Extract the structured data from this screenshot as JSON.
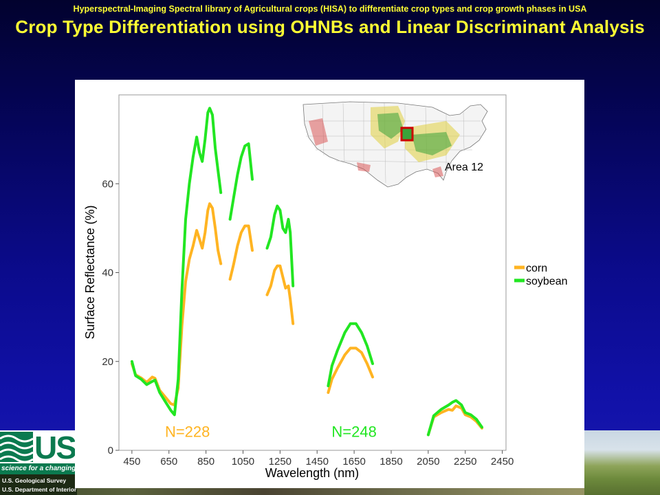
{
  "slide": {
    "subtitle": "Hyperspectral-Imaging Spectral library of Agricultural crops (HISA) to differentiate crop types and crop growth phases in USA",
    "title": "Crop Type Differentiation using OHNBs and Linear Discriminant Analysis"
  },
  "footer": {
    "logo_text": "US",
    "slogan": "science for a changing world",
    "line1": "U.S. Geological Survey",
    "line2": "U.S. Department of Interior"
  },
  "colors": {
    "corn": "#ffb422",
    "soybean": "#22e622",
    "title": "#ffff33"
  },
  "inset_map": {
    "label": "Area 12"
  },
  "chart_data": {
    "type": "line",
    "title": "",
    "xlabel": "Wavelength (nm)",
    "ylabel": "Surface Reflectance (%)",
    "xlim": [
      380,
      2470
    ],
    "ylim": [
      0,
      80
    ],
    "xticks": [
      450,
      650,
      850,
      1050,
      1250,
      1450,
      1650,
      1850,
      2050,
      2250,
      2450
    ],
    "yticks": [
      0,
      20,
      40,
      60
    ],
    "legend_position": "right",
    "annotations": [
      {
        "text": "N=228",
        "x": 750,
        "y": 3,
        "series": "corn"
      },
      {
        "text": "N=248",
        "x": 1650,
        "y": 3,
        "series": "soybean"
      }
    ],
    "series": [
      {
        "name": "corn",
        "segments": [
          [
            [
              450,
              19.5
            ],
            [
              470,
              17
            ],
            [
              500,
              16.3
            ],
            [
              530,
              15.3
            ],
            [
              560,
              16.5
            ],
            [
              575,
              16.2
            ],
            [
              600,
              13.5
            ],
            [
              630,
              12
            ],
            [
              660,
              10.5
            ],
            [
              680,
              10.2
            ],
            [
              700,
              14
            ],
            [
              720,
              28
            ],
            [
              740,
              38
            ],
            [
              760,
              43
            ],
            [
              780,
              46
            ],
            [
              800,
              49.5
            ],
            [
              815,
              47.5
            ],
            [
              830,
              45.5
            ],
            [
              845,
              49
            ],
            [
              860,
              54
            ],
            [
              870,
              55.5
            ],
            [
              885,
              54.5
            ],
            [
              900,
              50
            ],
            [
              915,
              45
            ],
            [
              930,
              42
            ]
          ],
          [
            [
              980,
              38.5
            ],
            [
              1000,
              42
            ],
            [
              1020,
              46
            ],
            [
              1040,
              49
            ],
            [
              1060,
              50.5
            ],
            [
              1080,
              50.5
            ],
            [
              1100,
              45
            ]
          ],
          [
            [
              1180,
              35
            ],
            [
              1200,
              37
            ],
            [
              1220,
              40.5
            ],
            [
              1235,
              41.5
            ],
            [
              1250,
              41.5
            ],
            [
              1265,
              39
            ],
            [
              1280,
              36.5
            ],
            [
              1295,
              37
            ],
            [
              1305,
              34
            ],
            [
              1320,
              28.5
            ]
          ],
          [
            [
              1510,
              13
            ],
            [
              1530,
              16
            ],
            [
              1560,
              18.5
            ],
            [
              1600,
              21.5
            ],
            [
              1630,
              23
            ],
            [
              1660,
              23
            ],
            [
              1690,
              22
            ],
            [
              1720,
              19.5
            ],
            [
              1750,
              16.5
            ]
          ],
          [
            [
              2050,
              3.5
            ],
            [
              2080,
              7.5
            ],
            [
              2120,
              8.5
            ],
            [
              2160,
              9.2
            ],
            [
              2180,
              9
            ],
            [
              2200,
              10
            ],
            [
              2230,
              9.5
            ],
            [
              2250,
              8
            ],
            [
              2280,
              7.5
            ],
            [
              2310,
              6.5
            ],
            [
              2340,
              5
            ]
          ]
        ]
      },
      {
        "name": "soybean",
        "segments": [
          [
            [
              450,
              20
            ],
            [
              470,
              16.8
            ],
            [
              500,
              16
            ],
            [
              530,
              14.8
            ],
            [
              560,
              15.5
            ],
            [
              575,
              15.8
            ],
            [
              600,
              13
            ],
            [
              630,
              11
            ],
            [
              660,
              9
            ],
            [
              680,
              8
            ],
            [
              700,
              16
            ],
            [
              720,
              36
            ],
            [
              740,
              52
            ],
            [
              760,
              60
            ],
            [
              780,
              66
            ],
            [
              800,
              70.5
            ],
            [
              815,
              67
            ],
            [
              830,
              65
            ],
            [
              845,
              70
            ],
            [
              860,
              76
            ],
            [
              870,
              77
            ],
            [
              885,
              75.5
            ],
            [
              900,
              68
            ],
            [
              915,
              63
            ],
            [
              930,
              58
            ]
          ],
          [
            [
              980,
              52
            ],
            [
              1000,
              57
            ],
            [
              1020,
              62
            ],
            [
              1040,
              66
            ],
            [
              1060,
              68.5
            ],
            [
              1080,
              69
            ],
            [
              1100,
              61
            ]
          ],
          [
            [
              1180,
              45.5
            ],
            [
              1200,
              48
            ],
            [
              1220,
              53
            ],
            [
              1235,
              55
            ],
            [
              1250,
              54
            ],
            [
              1265,
              50
            ],
            [
              1280,
              49
            ],
            [
              1295,
              52
            ],
            [
              1305,
              49
            ],
            [
              1320,
              37
            ]
          ],
          [
            [
              1510,
              14.5
            ],
            [
              1530,
              19
            ],
            [
              1560,
              22.5
            ],
            [
              1600,
              26.5
            ],
            [
              1630,
              28.5
            ],
            [
              1660,
              28.5
            ],
            [
              1690,
              26.5
            ],
            [
              1720,
              23.5
            ],
            [
              1750,
              19.5
            ]
          ],
          [
            [
              2050,
              3.5
            ],
            [
              2080,
              7.8
            ],
            [
              2120,
              9.2
            ],
            [
              2160,
              10.2
            ],
            [
              2180,
              10.8
            ],
            [
              2200,
              11.2
            ],
            [
              2230,
              10.2
            ],
            [
              2250,
              8.5
            ],
            [
              2280,
              8
            ],
            [
              2310,
              7
            ],
            [
              2340,
              5.2
            ]
          ]
        ]
      }
    ]
  }
}
